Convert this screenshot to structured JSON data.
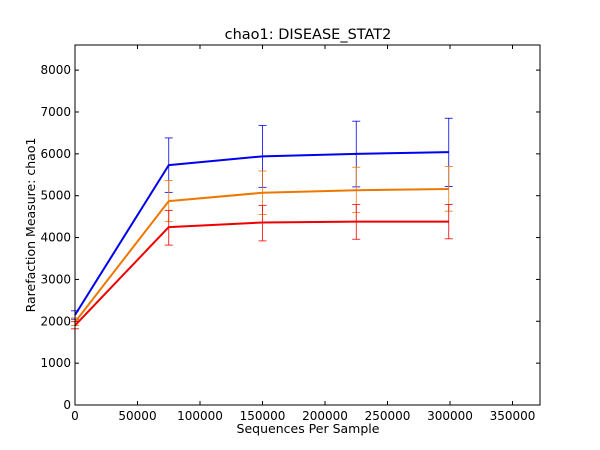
{
  "chart_data": {
    "type": "line",
    "title": "chao1: DISEASE_STAT2",
    "xlabel": "Sequences Per Sample",
    "ylabel": "Rarefaction Measure: chao1",
    "xlim": [
      0,
      372000
    ],
    "ylim": [
      0,
      8600
    ],
    "x_ticks": [
      0,
      50000,
      100000,
      150000,
      200000,
      250000,
      300000,
      350000
    ],
    "x_tick_labels": [
      "0",
      "50000",
      "100000",
      "150000",
      "200000",
      "250000",
      "300000",
      "350000"
    ],
    "y_ticks": [
      0,
      1000,
      2000,
      3000,
      4000,
      5000,
      6000,
      7000,
      8000
    ],
    "y_tick_labels": [
      "0",
      "1000",
      "2000",
      "3000",
      "4000",
      "5000",
      "6000",
      "7000",
      "8000"
    ],
    "grid": false,
    "legend": "none",
    "x": [
      10,
      75000,
      150000,
      225000,
      299000
    ],
    "series": [
      {
        "color": "#0000ee",
        "values": [
          2150,
          5730,
          5940,
          6000,
          6040
        ],
        "err_low": [
          2050,
          5080,
          5200,
          5210,
          5220
        ],
        "err_high": [
          2250,
          6380,
          6680,
          6780,
          6850
        ]
      },
      {
        "color": "#ee7700",
        "values": [
          1980,
          4870,
          5070,
          5130,
          5160
        ],
        "err_low": [
          1900,
          4380,
          4550,
          4600,
          4630
        ],
        "err_high": [
          2080,
          5360,
          5590,
          5680,
          5700
        ]
      },
      {
        "color": "#ee0000",
        "values": [
          1900,
          4250,
          4360,
          4380,
          4380
        ],
        "err_low": [
          1820,
          3820,
          3920,
          3960,
          3970
        ],
        "err_high": [
          1990,
          4650,
          4770,
          4790,
          4790
        ]
      }
    ]
  }
}
